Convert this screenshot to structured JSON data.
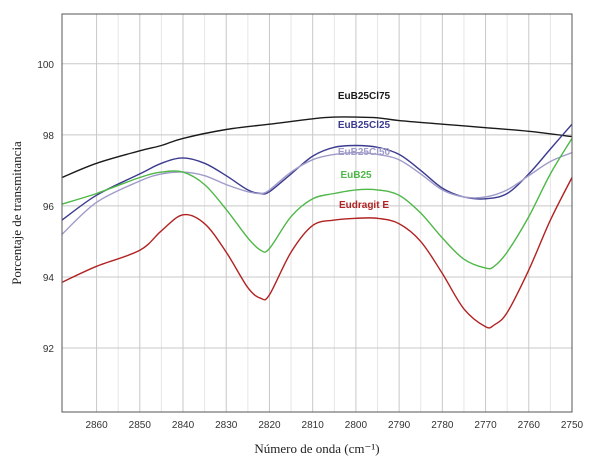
{
  "chart_data": {
    "type": "line",
    "xlabel": "Número de onda (cm⁻¹)",
    "ylabel": "Porcentaje de transmitancia",
    "xlim": [
      2868,
      2750
    ],
    "ylim": [
      90.2,
      101.4
    ],
    "x_reversed": true,
    "grid": true,
    "x_ticks": [
      2860,
      2850,
      2840,
      2830,
      2820,
      2810,
      2800,
      2790,
      2780,
      2770,
      2760,
      2750
    ],
    "y_ticks": [
      92,
      94,
      96,
      98,
      100
    ],
    "series": [
      {
        "name": "EuB25Cl75",
        "color": "#1a1a1a",
        "x": [
          2868,
          2860,
          2850,
          2845,
          2840,
          2830,
          2820,
          2810,
          2805,
          2800,
          2795,
          2790,
          2780,
          2770,
          2760,
          2750
        ],
        "y": [
          96.8,
          97.2,
          97.55,
          97.7,
          97.9,
          98.15,
          98.3,
          98.45,
          98.5,
          98.5,
          98.48,
          98.4,
          98.3,
          98.2,
          98.1,
          97.95
        ]
      },
      {
        "name": "EuB25Cl25",
        "color": "#3b3b8f",
        "x": [
          2868,
          2860,
          2850,
          2845,
          2840,
          2835,
          2830,
          2825,
          2822,
          2820,
          2815,
          2810,
          2805,
          2800,
          2795,
          2790,
          2785,
          2780,
          2775,
          2770,
          2765,
          2760,
          2755,
          2750
        ],
        "y": [
          95.6,
          96.3,
          96.9,
          97.2,
          97.35,
          97.2,
          96.85,
          96.45,
          96.35,
          96.4,
          96.9,
          97.4,
          97.65,
          97.7,
          97.65,
          97.45,
          97.0,
          96.5,
          96.25,
          96.2,
          96.35,
          96.9,
          97.6,
          98.3
        ]
      },
      {
        "name": "EuB25Cl50",
        "color": "#9f9bc9",
        "x": [
          2868,
          2860,
          2850,
          2845,
          2840,
          2835,
          2830,
          2825,
          2822,
          2820,
          2815,
          2810,
          2805,
          2800,
          2795,
          2790,
          2785,
          2780,
          2775,
          2770,
          2765,
          2760,
          2755,
          2750
        ],
        "y": [
          95.2,
          96.1,
          96.7,
          96.9,
          96.95,
          96.85,
          96.6,
          96.4,
          96.35,
          96.45,
          96.95,
          97.3,
          97.45,
          97.5,
          97.45,
          97.3,
          96.9,
          96.45,
          96.25,
          96.25,
          96.45,
          96.85,
          97.25,
          97.5
        ]
      },
      {
        "name": "EuB25",
        "color": "#4fb848",
        "x": [
          2868,
          2860,
          2850,
          2845,
          2840,
          2835,
          2830,
          2825,
          2822,
          2820,
          2815,
          2810,
          2805,
          2800,
          2795,
          2790,
          2785,
          2780,
          2775,
          2770,
          2768,
          2765,
          2760,
          2755,
          2750
        ],
        "y": [
          96.05,
          96.35,
          96.8,
          96.95,
          96.95,
          96.6,
          95.9,
          95.1,
          94.75,
          94.8,
          95.7,
          96.2,
          96.35,
          96.45,
          96.45,
          96.3,
          95.8,
          95.1,
          94.5,
          94.25,
          94.3,
          94.7,
          95.7,
          96.9,
          97.9
        ]
      },
      {
        "name": "Eudragit E",
        "color": "#b22222",
        "x": [
          2868,
          2860,
          2850,
          2845,
          2840,
          2835,
          2830,
          2825,
          2822,
          2820,
          2815,
          2810,
          2805,
          2800,
          2795,
          2790,
          2785,
          2780,
          2775,
          2770,
          2768,
          2765,
          2760,
          2755,
          2750
        ],
        "y": [
          93.85,
          94.3,
          94.75,
          95.3,
          95.75,
          95.5,
          94.7,
          93.7,
          93.4,
          93.5,
          94.7,
          95.45,
          95.6,
          95.65,
          95.65,
          95.5,
          95.0,
          94.1,
          93.1,
          92.6,
          92.65,
          93.0,
          94.2,
          95.6,
          96.8
        ]
      }
    ]
  }
}
